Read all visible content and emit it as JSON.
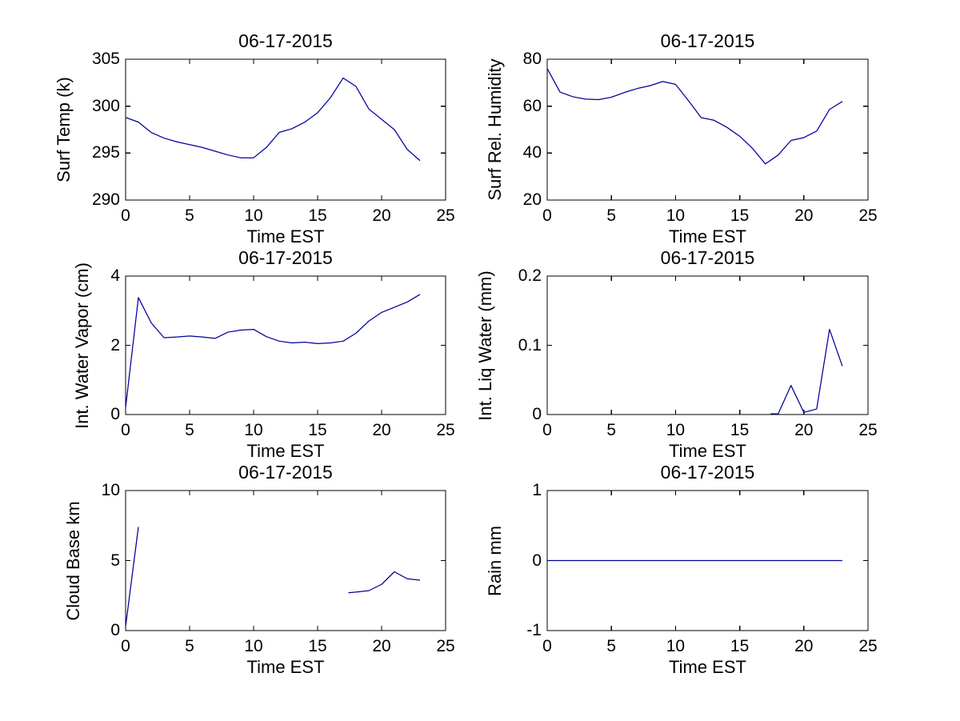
{
  "figure": {
    "background_color": "#ffffff",
    "axis_color": "#000000",
    "line_color": "#000099"
  },
  "chart_data": [
    {
      "type": "line",
      "title": "06-17-2015",
      "xlabel": "Time EST",
      "ylabel": "Surf Temp (k)",
      "xlim": [
        0,
        25
      ],
      "ylim": [
        290,
        305
      ],
      "xticks": [
        0,
        5,
        10,
        15,
        20,
        25
      ],
      "yticks": [
        290,
        295,
        300,
        305
      ],
      "grid": false,
      "legend": false,
      "series": [
        {
          "name": "surface-temperature",
          "x": [
            0,
            1,
            2,
            3,
            4,
            5,
            6,
            7,
            8,
            9,
            10,
            11,
            12,
            13,
            14,
            15,
            16,
            17,
            18,
            19,
            20,
            21,
            22,
            23
          ],
          "y": [
            298.8,
            298.3,
            297.2,
            296.6,
            296.2,
            295.9,
            295.6,
            295.2,
            294.8,
            294.5,
            294.5,
            295.6,
            297.2,
            297.6,
            298.3,
            299.3,
            300.9,
            303.0,
            302.1,
            299.7,
            298.6,
            297.5,
            295.4,
            294.2
          ]
        }
      ]
    },
    {
      "type": "line",
      "title": "06-17-2015",
      "xlabel": "Time EST",
      "ylabel": "Surf Rel. Humidity",
      "xlim": [
        0,
        25
      ],
      "ylim": [
        20,
        80
      ],
      "xticks": [
        0,
        5,
        10,
        15,
        20,
        25
      ],
      "yticks": [
        20,
        40,
        60,
        80
      ],
      "grid": false,
      "legend": false,
      "series": [
        {
          "name": "surface-relative-humidity",
          "x": [
            0,
            1,
            2,
            3,
            4,
            5,
            6,
            7,
            8,
            9,
            10,
            11,
            12,
            13,
            14,
            15,
            16,
            17,
            18,
            19,
            20,
            21,
            22,
            23
          ],
          "y": [
            76,
            66,
            64,
            63,
            62.8,
            63.8,
            65.8,
            67.5,
            68.7,
            70.5,
            69.3,
            62.4,
            55.1,
            54,
            51,
            47.2,
            42,
            35.4,
            39.2,
            45.4,
            46.6,
            49.4,
            58.6,
            62
          ]
        }
      ]
    },
    {
      "type": "line",
      "title": "06-17-2015",
      "xlabel": "Time EST",
      "ylabel": "Int. Water Vapor (cm)",
      "xlim": [
        0,
        25
      ],
      "ylim": [
        0,
        4
      ],
      "xticks": [
        0,
        5,
        10,
        15,
        20,
        25
      ],
      "yticks": [
        0,
        2,
        4
      ],
      "grid": false,
      "legend": false,
      "series": [
        {
          "name": "integrated-water-vapor",
          "x": [
            0,
            1,
            2,
            3,
            4,
            5,
            6,
            7,
            8,
            9,
            10,
            11,
            12,
            13,
            14,
            15,
            16,
            17,
            18,
            19,
            20,
            21,
            22,
            23
          ],
          "y": [
            0.2,
            3.38,
            2.65,
            2.22,
            2.24,
            2.27,
            2.24,
            2.2,
            2.38,
            2.44,
            2.46,
            2.25,
            2.12,
            2.07,
            2.09,
            2.05,
            2.07,
            2.12,
            2.35,
            2.7,
            2.95,
            3.1,
            3.25,
            3.47
          ]
        }
      ]
    },
    {
      "type": "line",
      "title": "06-17-2015",
      "xlabel": "Time EST",
      "ylabel": "Int. Liq Water (mm)",
      "xlim": [
        0,
        25
      ],
      "ylim": [
        0,
        0.2
      ],
      "xticks": [
        0,
        5,
        10,
        15,
        20,
        25
      ],
      "yticks": [
        0,
        0.1,
        0.2
      ],
      "grid": false,
      "legend": false,
      "series": [
        {
          "name": "integrated-liquid-water",
          "x": [
            17.4,
            18,
            19,
            20,
            21,
            22,
            23
          ],
          "y": [
            0.001,
            0.001,
            0.042,
            0.003,
            0.008,
            0.123,
            0.07
          ]
        }
      ]
    },
    {
      "type": "line",
      "title": "06-17-2015",
      "xlabel": "Time EST",
      "ylabel": "Cloud Base km",
      "xlim": [
        0,
        25
      ],
      "ylim": [
        0,
        10
      ],
      "xticks": [
        0,
        5,
        10,
        15,
        20,
        25
      ],
      "yticks": [
        0,
        5,
        10
      ],
      "grid": false,
      "legend": false,
      "series": [
        {
          "name": "cloud-base-early",
          "x": [
            0,
            1
          ],
          "y": [
            0.3,
            7.4
          ]
        },
        {
          "name": "cloud-base-evening",
          "x": [
            17.4,
            18,
            19,
            20,
            21,
            22,
            23
          ],
          "y": [
            2.7,
            2.75,
            2.85,
            3.3,
            4.2,
            3.7,
            3.6
          ]
        }
      ]
    },
    {
      "type": "line",
      "title": "06-17-2015",
      "xlabel": "Time EST",
      "ylabel": "Rain mm",
      "xlim": [
        0,
        25
      ],
      "ylim": [
        -1,
        1
      ],
      "xticks": [
        0,
        5,
        10,
        15,
        20,
        25
      ],
      "yticks": [
        -1,
        0,
        1
      ],
      "grid": false,
      "legend": false,
      "series": [
        {
          "name": "rain",
          "x": [
            0,
            1,
            2,
            3,
            4,
            5,
            6,
            7,
            8,
            9,
            10,
            11,
            12,
            13,
            14,
            15,
            16,
            17,
            18,
            19,
            20,
            21,
            22,
            23
          ],
          "y": [
            0,
            0,
            0,
            0,
            0,
            0,
            0,
            0,
            0,
            0,
            0,
            0,
            0,
            0,
            0,
            0,
            0,
            0,
            0,
            0,
            0,
            0,
            0,
            0
          ]
        }
      ]
    }
  ]
}
